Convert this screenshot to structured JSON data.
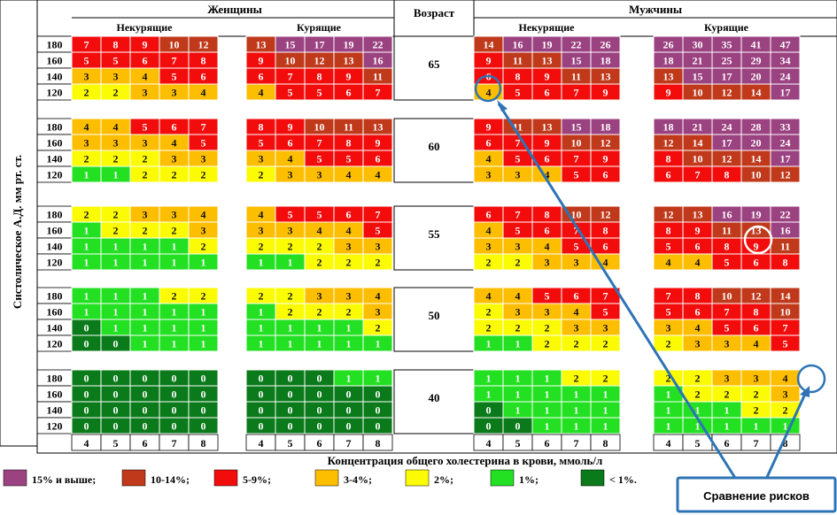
{
  "chart_data": {
    "type": "heatmap",
    "title": "",
    "y_axis_label": "Систолическое А.Д. мм рт. ст.",
    "x_axis_label": "Концентрация общего холестерина в крови, ммоль/л",
    "age_header": "Возраст",
    "sex_headers": [
      "Женщины",
      "Мужчины"
    ],
    "smoking_headers": [
      "Некурящие",
      "Курящие"
    ],
    "cholesterol": [
      "4",
      "5",
      "6",
      "7",
      "8"
    ],
    "bp_rows": [
      "180",
      "160",
      "140",
      "120"
    ],
    "ages": [
      "65",
      "60",
      "55",
      "50",
      "40"
    ],
    "groups": {
      "women_nonsmokers": [
        [
          [
            7,
            8,
            9,
            10,
            12
          ],
          [
            5,
            5,
            6,
            7,
            8
          ],
          [
            3,
            3,
            4,
            5,
            6
          ],
          [
            2,
            2,
            3,
            3,
            4
          ]
        ],
        [
          [
            4,
            4,
            5,
            6,
            7
          ],
          [
            3,
            3,
            3,
            4,
            5
          ],
          [
            2,
            2,
            2,
            3,
            3
          ],
          [
            1,
            1,
            2,
            2,
            2
          ]
        ],
        [
          [
            2,
            2,
            3,
            3,
            4
          ],
          [
            1,
            2,
            2,
            2,
            3
          ],
          [
            1,
            1,
            1,
            1,
            2
          ],
          [
            1,
            1,
            1,
            1,
            1
          ]
        ],
        [
          [
            1,
            1,
            1,
            2,
            2
          ],
          [
            1,
            1,
            1,
            1,
            1
          ],
          [
            0,
            1,
            1,
            1,
            1
          ],
          [
            0,
            0,
            1,
            1,
            1
          ]
        ],
        [
          [
            0,
            0,
            0,
            0,
            0
          ],
          [
            0,
            0,
            0,
            0,
            0
          ],
          [
            0,
            0,
            0,
            0,
            0
          ],
          [
            0,
            0,
            0,
            0,
            0
          ]
        ]
      ],
      "women_smokers": [
        [
          [
            13,
            15,
            17,
            19,
            22
          ],
          [
            9,
            10,
            12,
            13,
            16
          ],
          [
            6,
            7,
            8,
            9,
            11
          ],
          [
            4,
            5,
            5,
            6,
            7
          ]
        ],
        [
          [
            8,
            9,
            10,
            11,
            13
          ],
          [
            5,
            6,
            7,
            8,
            9
          ],
          [
            3,
            4,
            5,
            5,
            6
          ],
          [
            2,
            3,
            3,
            4,
            4
          ]
        ],
        [
          [
            4,
            5,
            5,
            6,
            7
          ],
          [
            3,
            3,
            4,
            4,
            5
          ],
          [
            2,
            2,
            2,
            3,
            3
          ],
          [
            1,
            1,
            2,
            2,
            2
          ]
        ],
        [
          [
            2,
            2,
            3,
            3,
            4
          ],
          [
            1,
            2,
            2,
            2,
            3
          ],
          [
            1,
            1,
            1,
            1,
            2
          ],
          [
            1,
            1,
            1,
            1,
            1
          ]
        ],
        [
          [
            0,
            0,
            0,
            1,
            1
          ],
          [
            0,
            0,
            0,
            0,
            0
          ],
          [
            0,
            0,
            0,
            0,
            0
          ],
          [
            0,
            0,
            0,
            0,
            0
          ]
        ]
      ],
      "men_nonsmokers": [
        [
          [
            14,
            16,
            19,
            22,
            26
          ],
          [
            9,
            11,
            13,
            15,
            18
          ],
          [
            6,
            8,
            9,
            11,
            13
          ],
          [
            4,
            5,
            6,
            7,
            9
          ]
        ],
        [
          [
            9,
            11,
            13,
            15,
            18
          ],
          [
            6,
            7,
            9,
            10,
            12
          ],
          [
            4,
            5,
            6,
            7,
            9
          ],
          [
            3,
            3,
            4,
            5,
            6
          ]
        ],
        [
          [
            6,
            7,
            8,
            10,
            12
          ],
          [
            4,
            5,
            6,
            7,
            8
          ],
          [
            3,
            3,
            4,
            5,
            6
          ],
          [
            2,
            2,
            3,
            3,
            4
          ]
        ],
        [
          [
            4,
            4,
            5,
            6,
            7
          ],
          [
            2,
            3,
            3,
            4,
            5
          ],
          [
            2,
            2,
            2,
            3,
            3
          ],
          [
            1,
            1,
            2,
            2,
            2
          ]
        ],
        [
          [
            1,
            1,
            1,
            2,
            2
          ],
          [
            1,
            1,
            1,
            1,
            1
          ],
          [
            0,
            1,
            1,
            1,
            1
          ],
          [
            0,
            0,
            1,
            1,
            1
          ]
        ]
      ],
      "men_smokers": [
        [
          [
            26,
            30,
            35,
            41,
            47
          ],
          [
            18,
            21,
            25,
            29,
            34
          ],
          [
            13,
            15,
            17,
            20,
            24
          ],
          [
            9,
            10,
            12,
            14,
            17
          ]
        ],
        [
          [
            18,
            21,
            24,
            28,
            33
          ],
          [
            12,
            14,
            17,
            20,
            24
          ],
          [
            8,
            10,
            12,
            14,
            17
          ],
          [
            6,
            7,
            8,
            10,
            12
          ]
        ],
        [
          [
            12,
            13,
            16,
            19,
            22
          ],
          [
            8,
            9,
            11,
            13,
            16
          ],
          [
            5,
            6,
            8,
            9,
            11
          ],
          [
            4,
            4,
            5,
            6,
            8
          ]
        ],
        [
          [
            7,
            8,
            10,
            12,
            14
          ],
          [
            5,
            6,
            7,
            8,
            10
          ],
          [
            3,
            4,
            5,
            6,
            7
          ],
          [
            2,
            3,
            3,
            4,
            5
          ]
        ],
        [
          [
            2,
            2,
            3,
            3,
            4
          ],
          [
            1,
            2,
            2,
            2,
            3
          ],
          [
            1,
            1,
            1,
            2,
            2
          ],
          [
            1,
            1,
            1,
            1,
            1
          ]
        ]
      ]
    },
    "legend": [
      {
        "label": "15% и выше;",
        "color": "#9B4280"
      },
      {
        "label": "10-14%;",
        "color": "#C0391B"
      },
      {
        "label": "5-9%;",
        "color": "#F30C0C"
      },
      {
        "label": "3-4%;",
        "color": "#FDBE00"
      },
      {
        "label": "2%;",
        "color": "#FBFB04"
      },
      {
        "label": "1%;",
        "color": "#23E023"
      },
      {
        "label": "< 1%.",
        "color": "#0A7A1A"
      }
    ],
    "annotation": {
      "label": "Сравнение рисков",
      "box_color": "#2E74B5",
      "arrow_color": "#2E74B5"
    }
  }
}
